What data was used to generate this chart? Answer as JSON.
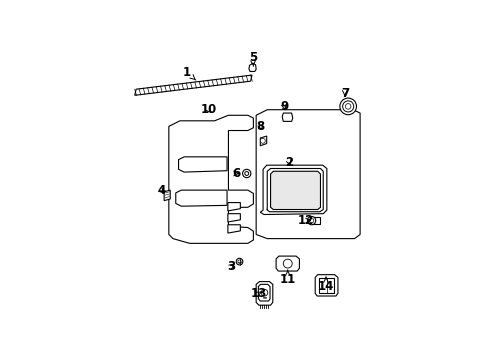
{
  "background_color": "#ffffff",
  "line_color": "#000000",
  "text_color": "#000000",
  "fig_width": 4.89,
  "fig_height": 3.6,
  "dpi": 100,
  "label_positions": {
    "1": {
      "text": [
        0.27,
        0.895
      ],
      "arrow": [
        0.31,
        0.86
      ]
    },
    "2": {
      "text": [
        0.64,
        0.57
      ],
      "arrow": [
        0.65,
        0.548
      ]
    },
    "3": {
      "text": [
        0.43,
        0.195
      ],
      "arrow": [
        0.452,
        0.21
      ]
    },
    "4": {
      "text": [
        0.178,
        0.468
      ],
      "arrow": [
        0.196,
        0.45
      ]
    },
    "5": {
      "text": [
        0.508,
        0.95
      ],
      "arrow": [
        0.51,
        0.916
      ]
    },
    "6": {
      "text": [
        0.448,
        0.53
      ],
      "arrow": [
        0.47,
        0.53
      ]
    },
    "7": {
      "text": [
        0.84,
        0.82
      ],
      "arrow": [
        0.84,
        0.798
      ]
    },
    "8": {
      "text": [
        0.536,
        0.7
      ],
      "arrow": [
        0.544,
        0.675
      ]
    },
    "9": {
      "text": [
        0.622,
        0.77
      ],
      "arrow": [
        0.628,
        0.748
      ]
    },
    "10": {
      "text": [
        0.348,
        0.76
      ],
      "arrow": [
        0.365,
        0.74
      ]
    },
    "11": {
      "text": [
        0.634,
        0.148
      ],
      "arrow": [
        0.634,
        0.182
      ]
    },
    "12": {
      "text": [
        0.7,
        0.36
      ],
      "arrow": [
        0.72,
        0.36
      ]
    },
    "13": {
      "text": [
        0.53,
        0.098
      ],
      "arrow": [
        0.55,
        0.108
      ]
    },
    "14": {
      "text": [
        0.772,
        0.122
      ],
      "arrow": [
        0.772,
        0.158
      ]
    }
  }
}
